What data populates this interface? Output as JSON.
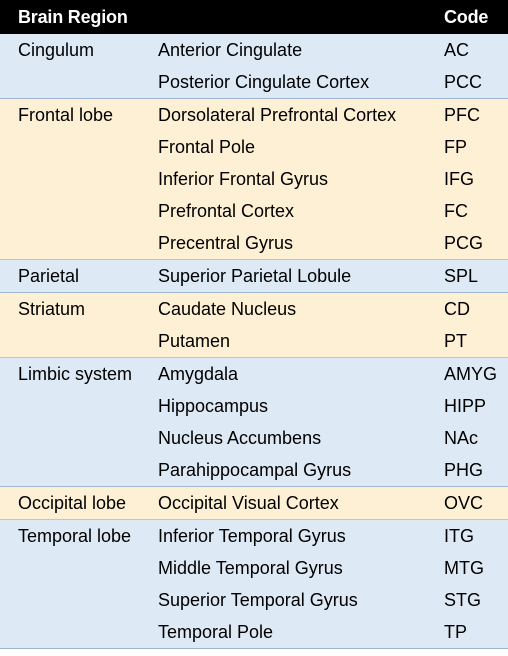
{
  "table": {
    "header": {
      "brain_region": "Brain Region",
      "subregion": "",
      "code": "Code"
    },
    "groups": [
      {
        "region": "Cingulum",
        "rows": [
          {
            "subregion": "Anterior Cingulate",
            "code": "AC"
          },
          {
            "subregion": "Posterior Cingulate Cortex",
            "code": "PCC"
          }
        ]
      },
      {
        "region": "Frontal lobe",
        "rows": [
          {
            "subregion": "Dorsolateral Prefrontal Cortex",
            "code": "PFC"
          },
          {
            "subregion": "Frontal Pole",
            "code": "FP"
          },
          {
            "subregion": "Inferior Frontal Gyrus",
            "code": "IFG"
          },
          {
            "subregion": "Prefrontal Cortex",
            "code": "FC"
          },
          {
            "subregion": "Precentral Gyrus",
            "code": "PCG"
          }
        ]
      },
      {
        "region": "Parietal",
        "rows": [
          {
            "subregion": "Superior Parietal Lobule",
            "code": "SPL"
          }
        ]
      },
      {
        "region": "Striatum",
        "rows": [
          {
            "subregion": "Caudate Nucleus",
            "code": "CD"
          },
          {
            "subregion": "Putamen",
            "code": "PT"
          }
        ]
      },
      {
        "region": "Limbic system",
        "rows": [
          {
            "subregion": "Amygdala",
            "code": "AMYG"
          },
          {
            "subregion": "Hippocampus",
            "code": "HIPP"
          },
          {
            "subregion": "Nucleus Accumbens",
            "code": "NAc"
          },
          {
            "subregion": "Parahippocampal Gyrus",
            "code": "PHG"
          }
        ]
      },
      {
        "region": "Occipital lobe",
        "rows": [
          {
            "subregion": "Occipital Visual Cortex",
            "code": "OVC"
          }
        ]
      },
      {
        "region": "Temporal lobe",
        "rows": [
          {
            "subregion": "Inferior Temporal Gyrus",
            "code": "ITG"
          },
          {
            "subregion": "Middle Temporal Gyrus",
            "code": "MTG"
          },
          {
            "subregion": "Superior Temporal Gyrus",
            "code": "STG"
          },
          {
            "subregion": "Temporal Pole",
            "code": "TP"
          }
        ]
      }
    ]
  }
}
